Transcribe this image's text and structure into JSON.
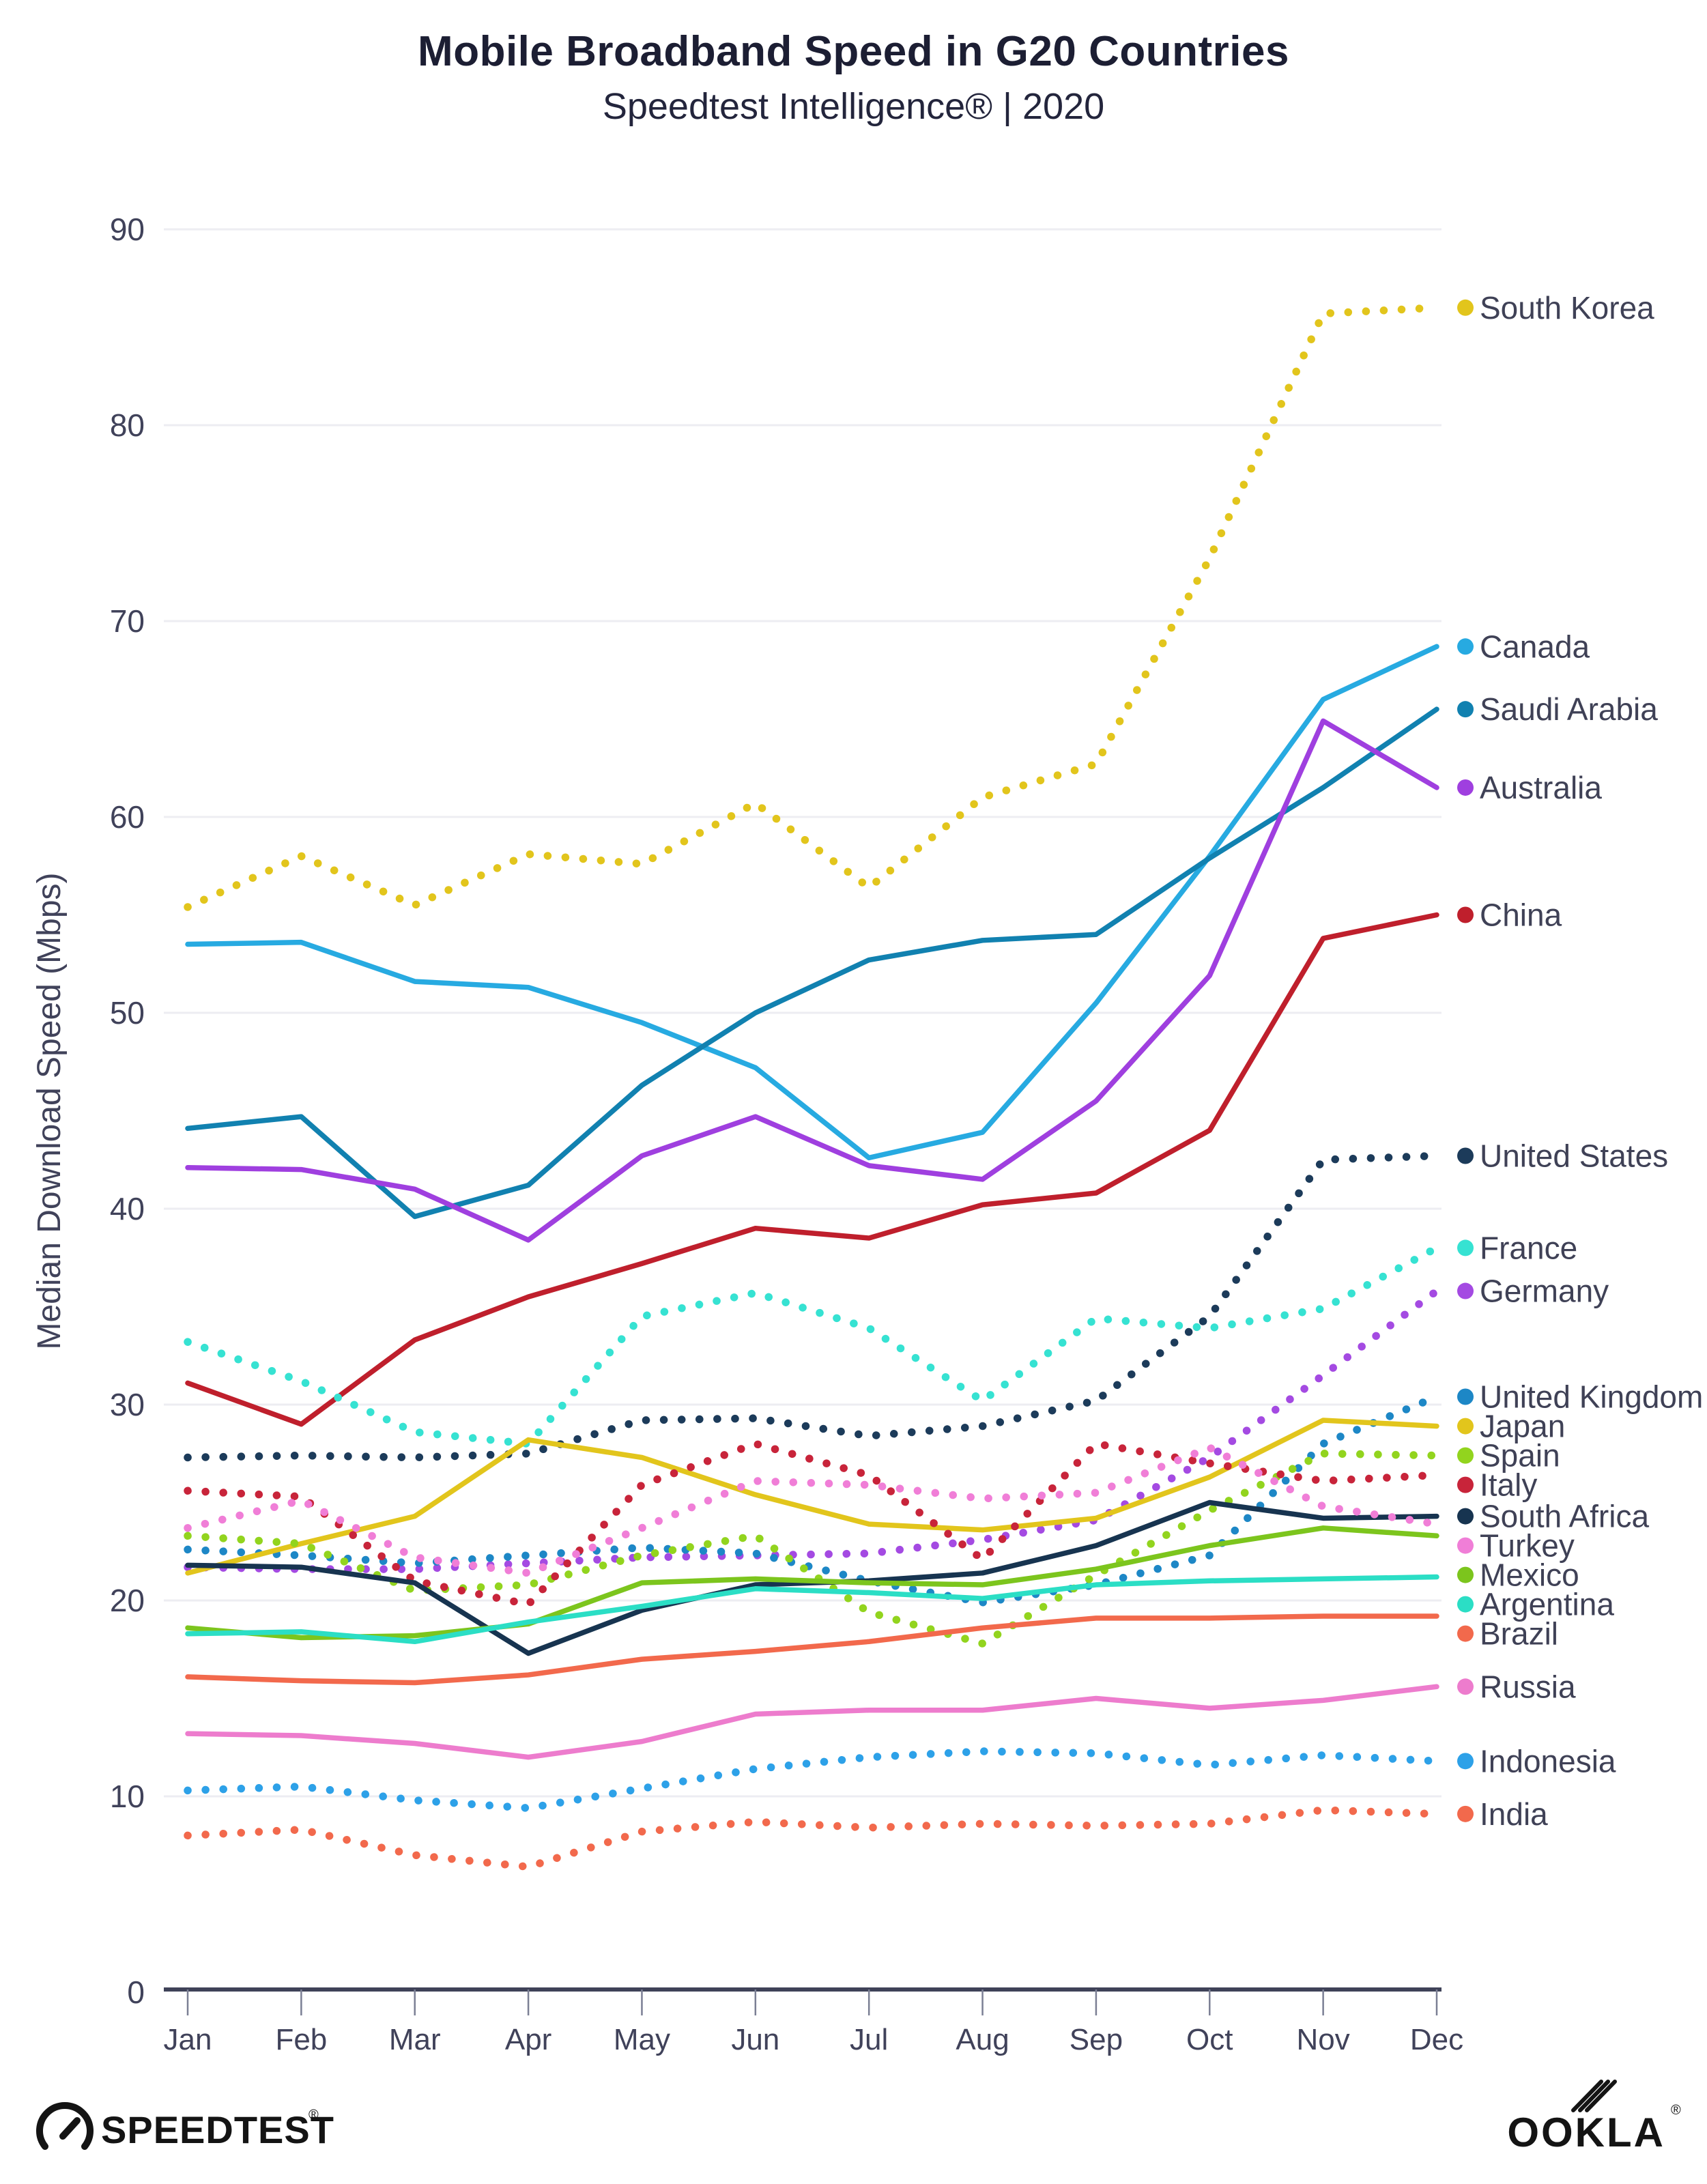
{
  "header": {
    "title": "Mobile Broadband Speed in G20 Countries",
    "subtitle": "Speedtest Intelligence® | 2020"
  },
  "footer": {
    "speedtest_label": "SPEEDTEST",
    "ookla_label": "OOKLA"
  },
  "colors": {
    "title_text": "#1c1e33",
    "axis_text": "#40425a",
    "gridline": "#ededf2",
    "axis_line": "#3f4258",
    "legend_text": "#3f4156",
    "logo_ink": "#141414"
  },
  "chart_data": {
    "type": "line",
    "title": "Mobile Broadband Speed in G20 Countries",
    "subtitle": "Speedtest Intelligence® | 2020",
    "x": [
      "Jan",
      "Feb",
      "Mar",
      "Apr",
      "May",
      "Jun",
      "Jul",
      "Aug",
      "Sep",
      "Oct",
      "Nov",
      "Dec"
    ],
    "xlabel": "",
    "ylabel": "Median Download Speed (Mbps)",
    "ylim": [
      0,
      90
    ],
    "yticks": [
      0,
      10,
      20,
      30,
      40,
      50,
      60,
      70,
      80,
      90
    ],
    "grid": true,
    "legend_position": "right of line ends",
    "series": [
      {
        "name": "South Korea",
        "color": "#e2c51c",
        "style": "dotted",
        "values": [
          55.4,
          58.0,
          55.5,
          58.1,
          57.6,
          60.7,
          56.4,
          61.0,
          62.7,
          73.2,
          85.7,
          86.0
        ]
      },
      {
        "name": "Canada",
        "color": "#27aae1",
        "style": "solid",
        "values": [
          53.5,
          53.6,
          51.6,
          51.3,
          49.5,
          47.2,
          42.6,
          43.9,
          50.5,
          58.0,
          66.0,
          68.7
        ]
      },
      {
        "name": "Saudi Arabia",
        "color": "#1181b0",
        "style": "solid",
        "values": [
          44.1,
          44.7,
          39.6,
          41.2,
          46.3,
          50.0,
          52.7,
          53.7,
          54.0,
          57.9,
          61.5,
          65.5
        ]
      },
      {
        "name": "Australia",
        "color": "#9f3fdf",
        "style": "solid",
        "values": [
          42.1,
          42.0,
          41.0,
          38.4,
          42.7,
          44.7,
          42.2,
          41.5,
          45.5,
          51.9,
          64.9,
          61.5
        ]
      },
      {
        "name": "China",
        "color": "#bf1f2c",
        "style": "solid",
        "values": [
          31.1,
          29.0,
          33.3,
          35.5,
          37.2,
          39.0,
          38.5,
          40.2,
          40.8,
          44.0,
          53.8,
          55.0
        ]
      },
      {
        "name": "United States",
        "color": "#1c3b5a",
        "style": "dotted",
        "values": [
          27.3,
          27.4,
          27.3,
          27.5,
          29.2,
          29.3,
          28.4,
          28.9,
          30.2,
          34.5,
          42.5,
          42.7
        ]
      },
      {
        "name": "France",
        "color": "#36e2d2",
        "style": "dotted",
        "values": [
          33.2,
          31.2,
          28.6,
          28.0,
          34.5,
          35.7,
          33.9,
          30.2,
          34.4,
          33.9,
          34.9,
          38.0
        ]
      },
      {
        "name": "Germany",
        "color": "#a44ae2",
        "style": "dotted",
        "values": [
          21.7,
          21.6,
          21.6,
          21.9,
          22.2,
          22.3,
          22.4,
          23.1,
          24.1,
          27.3,
          31.5,
          35.8
        ]
      },
      {
        "name": "United Kingdom",
        "color": "#1d87c6",
        "style": "dotted",
        "values": [
          22.6,
          22.3,
          21.9,
          22.3,
          22.7,
          22.4,
          21.0,
          19.9,
          20.8,
          22.3,
          28.0,
          30.4
        ]
      },
      {
        "name": "Japan",
        "color": "#e2c51c",
        "style": "solid",
        "values": [
          21.4,
          22.9,
          24.3,
          28.2,
          27.3,
          25.4,
          23.9,
          23.6,
          24.2,
          26.3,
          29.2,
          28.9
        ]
      },
      {
        "name": "Spain",
        "color": "#92d41e",
        "style": "dotted",
        "values": [
          23.3,
          22.9,
          20.5,
          20.8,
          22.3,
          23.3,
          19.4,
          17.8,
          21.3,
          24.6,
          27.5,
          27.4
        ]
      },
      {
        "name": "Italy",
        "color": "#c8243a",
        "style": "dotted",
        "values": [
          25.6,
          25.3,
          21.0,
          19.8,
          25.9,
          28.0,
          26.4,
          22.1,
          28.0,
          27.0,
          26.1,
          26.4
        ]
      },
      {
        "name": "South Africa",
        "color": "#173450",
        "style": "solid",
        "values": [
          21.8,
          21.7,
          20.9,
          17.3,
          19.5,
          20.8,
          21.0,
          21.4,
          22.8,
          25.0,
          24.2,
          24.3
        ]
      },
      {
        "name": "Turkey",
        "color": "#f07ed7",
        "style": "dotted",
        "values": [
          23.7,
          25.1,
          22.2,
          21.4,
          23.7,
          26.1,
          25.9,
          25.2,
          25.5,
          27.8,
          24.8,
          23.9
        ]
      },
      {
        "name": "Mexico",
        "color": "#7cc51d",
        "style": "solid",
        "values": [
          18.6,
          18.1,
          18.2,
          18.8,
          20.9,
          21.1,
          20.9,
          20.8,
          21.6,
          22.8,
          23.7,
          23.3
        ]
      },
      {
        "name": "Argentina",
        "color": "#2bdec5",
        "style": "solid",
        "values": [
          18.3,
          18.4,
          17.9,
          18.9,
          19.7,
          20.6,
          20.4,
          20.1,
          20.8,
          21.0,
          21.1,
          21.2
        ]
      },
      {
        "name": "Brazil",
        "color": "#f2694c",
        "style": "solid",
        "values": [
          16.1,
          15.9,
          15.8,
          16.2,
          17.0,
          17.4,
          17.9,
          18.6,
          19.1,
          19.1,
          19.2,
          19.2
        ]
      },
      {
        "name": "Russia",
        "color": "#ed7ccd",
        "style": "solid",
        "values": [
          13.2,
          13.1,
          12.7,
          12.0,
          12.8,
          14.2,
          14.4,
          14.4,
          15.0,
          14.5,
          14.9,
          15.6
        ]
      },
      {
        "name": "Indonesia",
        "color": "#2da1e8",
        "style": "dotted",
        "values": [
          10.3,
          10.5,
          9.8,
          9.4,
          10.4,
          11.4,
          12.0,
          12.3,
          12.2,
          11.6,
          12.1,
          11.8
        ]
      },
      {
        "name": "India",
        "color": "#f2694c",
        "style": "dotted",
        "values": [
          8.0,
          8.3,
          7.0,
          6.4,
          8.2,
          8.7,
          8.4,
          8.6,
          8.5,
          8.6,
          9.3,
          9.1
        ]
      }
    ]
  }
}
